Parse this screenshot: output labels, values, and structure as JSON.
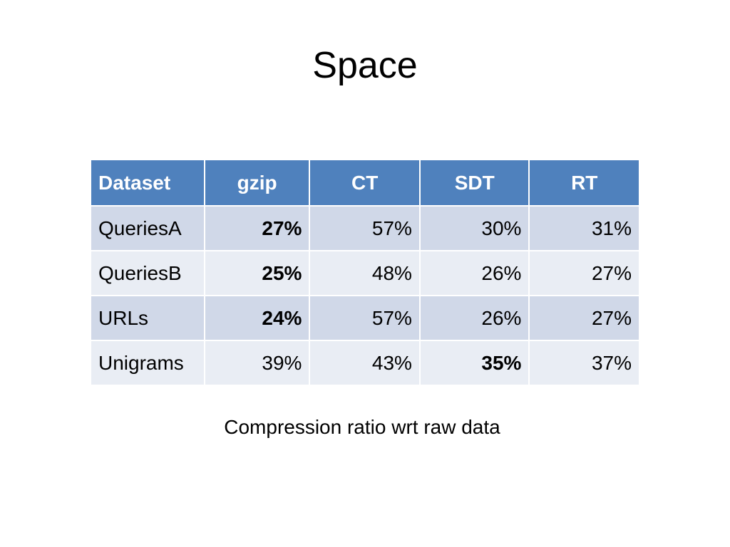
{
  "slide": {
    "title": "Space",
    "caption": "Compression ratio wrt raw data"
  },
  "table": {
    "headers": [
      "Dataset",
      "gzip",
      "CT",
      "SDT",
      "RT"
    ],
    "rows": [
      {
        "dataset": "QueriesA",
        "gzip": "27%",
        "ct": "57%",
        "sdt": "30%",
        "rt": "31%",
        "bold": [
          "gzip"
        ]
      },
      {
        "dataset": "QueriesB",
        "gzip": "25%",
        "ct": "48%",
        "sdt": "26%",
        "rt": "27%",
        "bold": [
          "gzip"
        ]
      },
      {
        "dataset": "URLs",
        "gzip": "24%",
        "ct": "57%",
        "sdt": "26%",
        "rt": "27%",
        "bold": [
          "gzip"
        ]
      },
      {
        "dataset": "Unigrams",
        "gzip": "39%",
        "ct": "43%",
        "sdt": "35%",
        "rt": "37%",
        "bold": [
          "sdt"
        ]
      }
    ]
  },
  "colors": {
    "header_bg": "#4f81bd",
    "row_band_dark": "#d0d8e8",
    "row_band_light": "#e9edf4"
  }
}
